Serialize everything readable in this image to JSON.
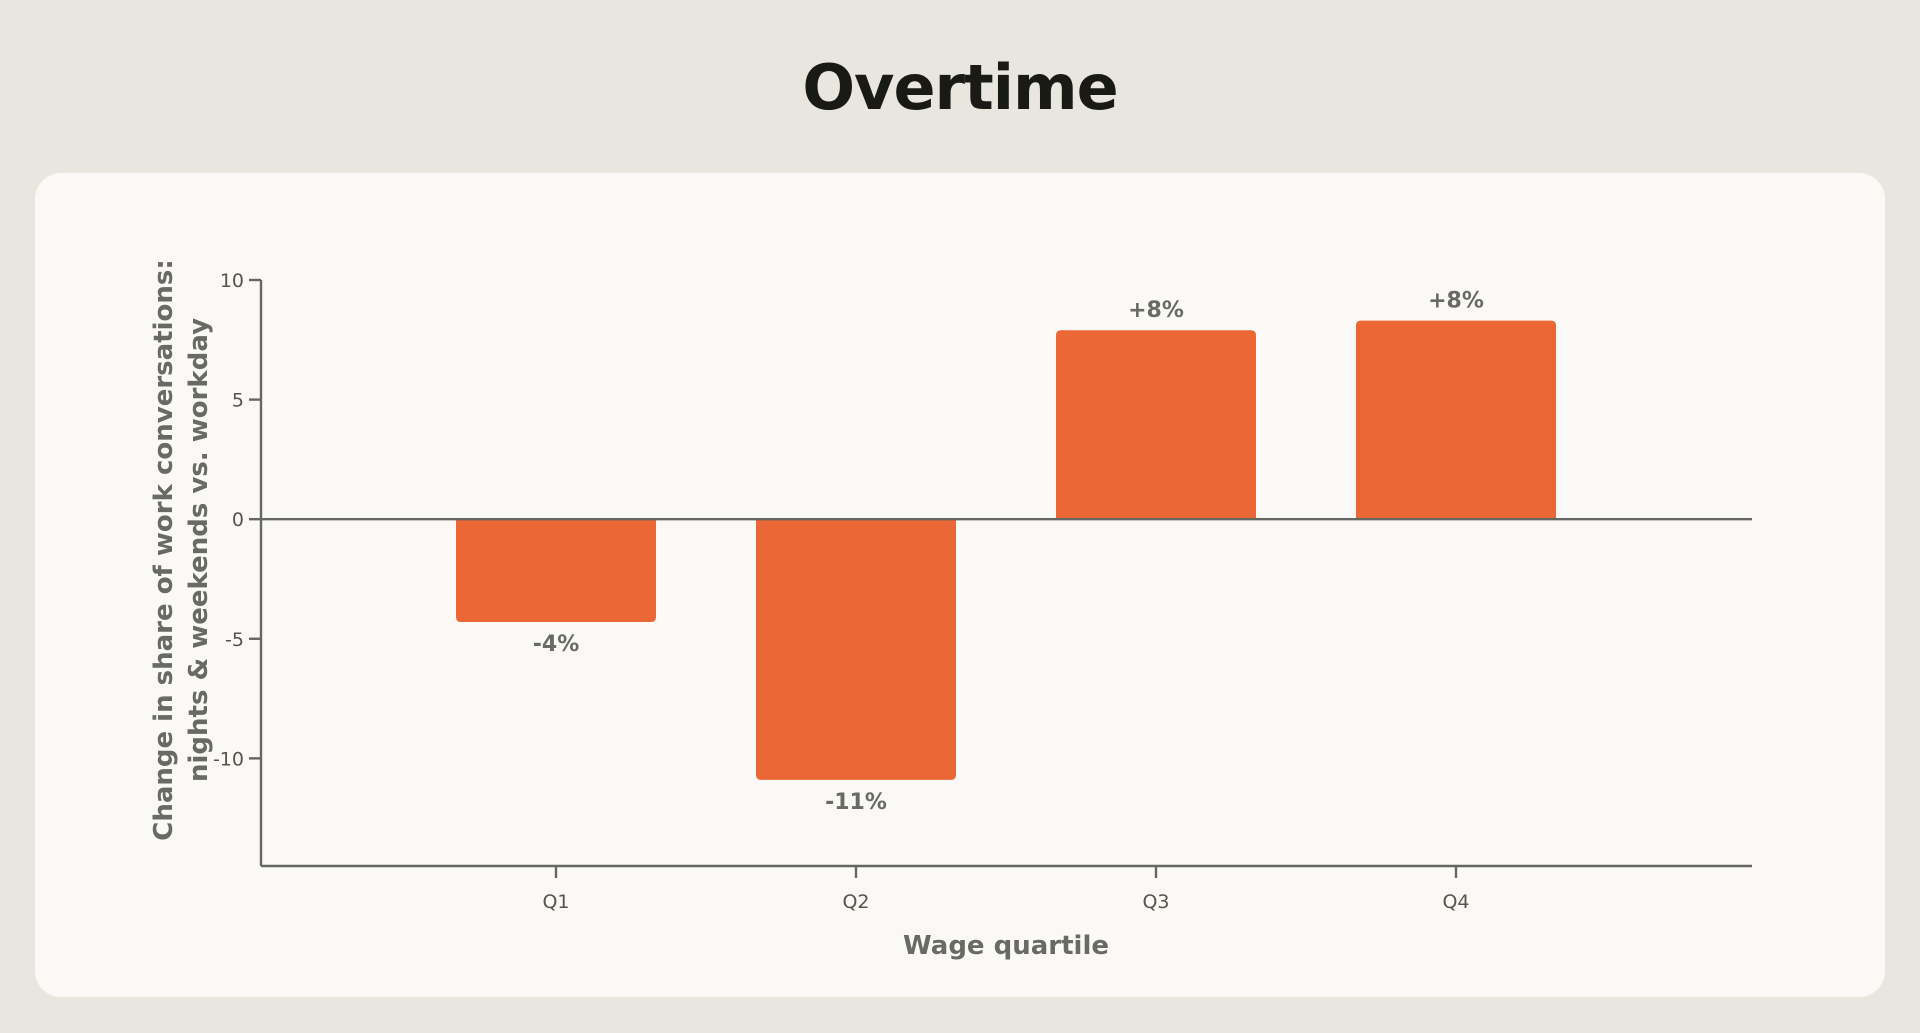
{
  "page": {
    "title": "Overtime"
  },
  "colors": {
    "background": "#e8e6df",
    "card": "#faf9f5",
    "bar": "#eb6736",
    "axis": "#666662",
    "text": "#6a6a64",
    "title": "#191915"
  },
  "chart_data": {
    "type": "bar",
    "categories": [
      "Q1",
      "Q2",
      "Q3",
      "Q4"
    ],
    "values": [
      -4.3,
      -10.9,
      7.9,
      8.3
    ],
    "data_labels": [
      "-4%",
      "-11%",
      "+8%",
      "+8%"
    ],
    "title": "Overtime",
    "xlabel": "Wage quartile",
    "ylabel_lines": [
      "Change in share of work conversations:",
      "nights & weekends vs. workday"
    ],
    "ylim": [
      -14.5,
      10
    ],
    "yticks": [
      10,
      5,
      0,
      -5,
      -10
    ],
    "ytick_labels": [
      "10",
      "5",
      "0",
      "-5",
      "-10"
    ],
    "grid": false,
    "legend": "none"
  }
}
